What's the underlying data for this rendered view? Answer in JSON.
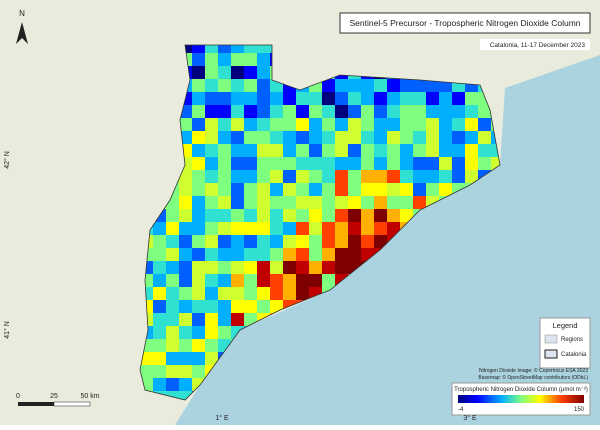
{
  "title": "Sentinel-5 Precursor - Tropospheric Nitrogen Dioxide Column",
  "subtitle": "Catalonia, 11-17 December 2023",
  "north": "N",
  "legend": {
    "title": "Legend",
    "items": [
      "Regions",
      "Catalonia"
    ]
  },
  "credits": [
    "Nitrogen Dioxide Image: © Copernicus ESA 2023",
    "Basemap: © OpenStreetMap contributors (ODbL)"
  ],
  "colorbar": {
    "title": "Tropospheric Nitrogen Dioxide Column (μmol m⁻²)",
    "min": -4,
    "max": 150
  },
  "scale_bar": {
    "labels": [
      "0",
      "25",
      "50 km"
    ]
  },
  "grid_labels": {
    "latitude": [
      "42° N",
      "41° N"
    ],
    "longitude": [
      "1° E",
      "3° E"
    ]
  }
}
